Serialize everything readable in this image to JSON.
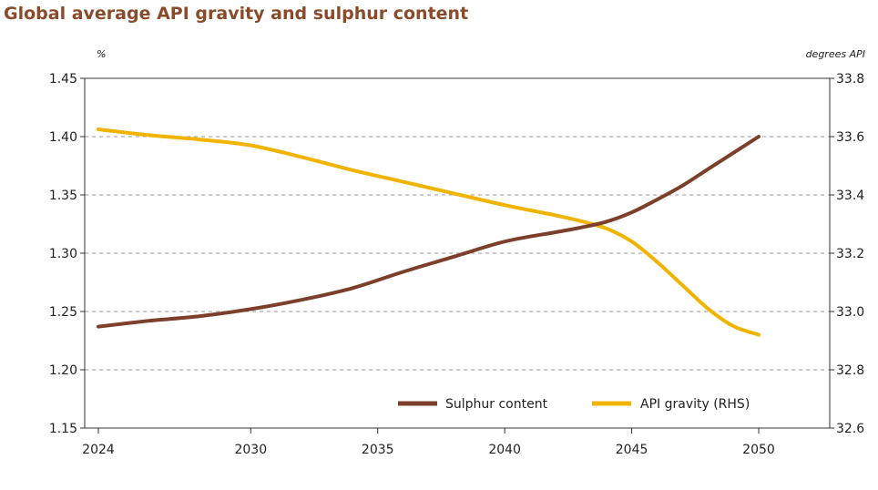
{
  "title": "Global average API gravity and sulphur content",
  "chart_data": {
    "type": "line",
    "title": "Global average API gravity and sulphur content",
    "left_axis": {
      "unit": "%",
      "ylim": [
        1.15,
        1.45
      ],
      "ticks": [
        "1.45",
        "1.40",
        "1.35",
        "1.30",
        "1.25",
        "1.20",
        "1.15"
      ]
    },
    "right_axis": {
      "unit": "degrees API",
      "ylim": [
        32.6,
        33.8
      ],
      "ticks": [
        "33.8",
        "33.6",
        "33.4",
        "33.2",
        "33.0",
        "32.8",
        "32.6"
      ]
    },
    "x_ticks": [
      "2024",
      "2030",
      "2035",
      "2040",
      "2045",
      "2050"
    ],
    "xlim": [
      2024,
      2050
    ],
    "grid": "horizontal dashed",
    "legend_position": "bottom-right",
    "series": [
      {
        "name": "Sulphur content",
        "axis": "left",
        "color": "#7b3f2b",
        "x": [
          2024,
          2026,
          2028,
          2030,
          2032,
          2034,
          2036,
          2038,
          2040,
          2042,
          2043,
          2044,
          2045,
          2046,
          2047,
          2048,
          2049,
          2050
        ],
        "y": [
          1.237,
          1.242,
          1.246,
          1.252,
          1.26,
          1.27,
          1.284,
          1.297,
          1.31,
          1.318,
          1.322,
          1.327,
          1.335,
          1.346,
          1.358,
          1.372,
          1.386,
          1.4
        ]
      },
      {
        "name": "API gravity (RHS)",
        "axis": "right",
        "color": "#f0b400",
        "x": [
          2024,
          2026,
          2028,
          2030,
          2032,
          2034,
          2036,
          2038,
          2040,
          2042,
          2043,
          2044,
          2045,
          2046,
          2047,
          2048,
          2049,
          2050
        ],
        "y": [
          33.625,
          33.605,
          33.59,
          33.57,
          33.53,
          33.485,
          33.445,
          33.405,
          33.365,
          33.33,
          33.31,
          33.285,
          33.24,
          33.17,
          33.09,
          33.01,
          32.95,
          32.92
        ]
      }
    ]
  }
}
